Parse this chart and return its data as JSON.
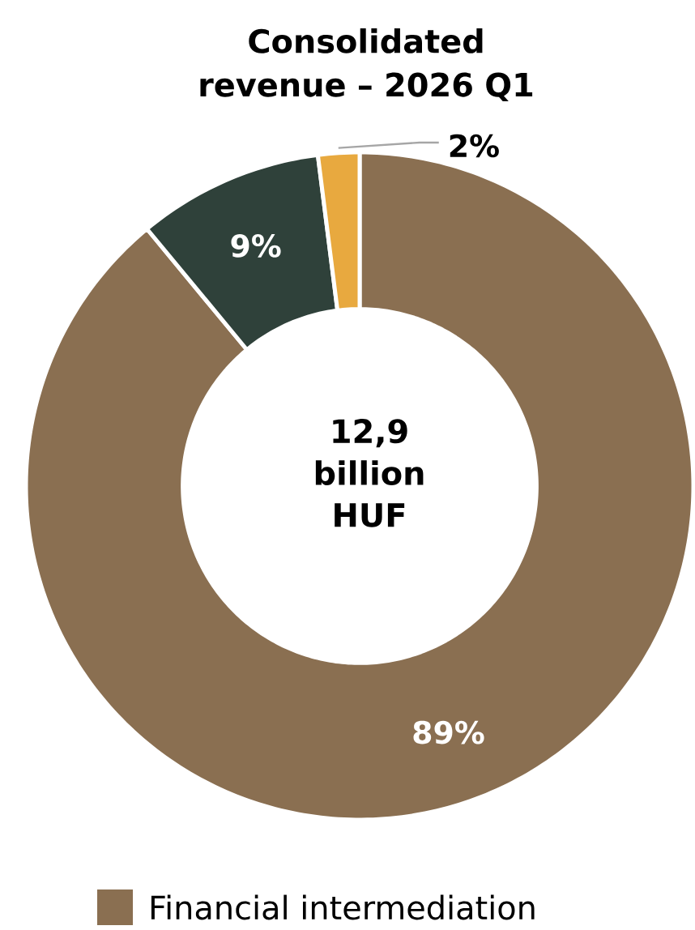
{
  "chart_data": {
    "type": "donut",
    "title": "Consolidated revenue – 2026 Q1",
    "categories": [
      "Financial intermediation",
      null,
      null
    ],
    "values": [
      89,
      9,
      2
    ],
    "colors": [
      "#8a6f51",
      "#2f413a",
      "#e8a93f"
    ],
    "value_labels": [
      "89%",
      "9%",
      "2%"
    ],
    "annotations": [
      "12,9 billion HUF"
    ],
    "legend": "bottom"
  }
}
